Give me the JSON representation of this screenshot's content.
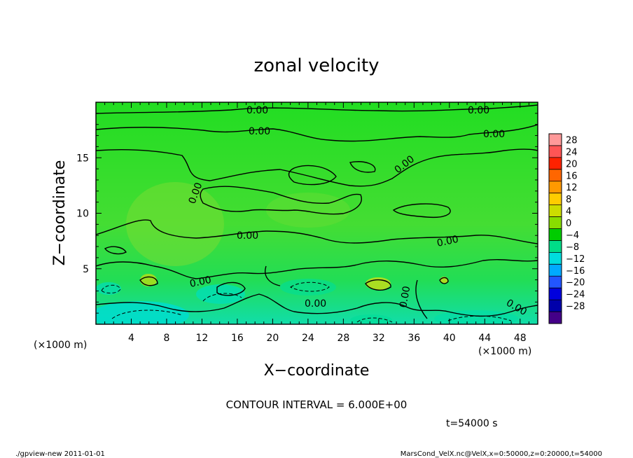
{
  "chart_data": {
    "type": "heatmap",
    "title": "zonal velocity",
    "xlabel": "X−coordinate",
    "ylabel": "Z−coordinate",
    "x_unit_left": "(×1000 m)",
    "x_unit_right": "(×1000 m)",
    "xlim": [
      0,
      50
    ],
    "ylim": [
      0,
      20
    ],
    "x_ticks": [
      4,
      8,
      12,
      16,
      20,
      24,
      28,
      32,
      36,
      40,
      44,
      48
    ],
    "y_ticks": [
      5,
      10,
      15
    ],
    "colorbar": {
      "labels": [
        "28",
        "24",
        "20",
        "16",
        "12",
        "8",
        "4",
        "0",
        "−4",
        "−8",
        "−12",
        "−16",
        "−20",
        "−24",
        "−28"
      ],
      "colors": [
        "#ff9999",
        "#ff5555",
        "#ff2200",
        "#ff6600",
        "#ff9900",
        "#ffcc00",
        "#ccdd00",
        "#88dd00",
        "#00cc00",
        "#00dd88",
        "#00dddd",
        "#00aaff",
        "#2255ff",
        "#0000dd",
        "#0000aa",
        "#440088"
      ]
    },
    "contour_labels": [
      "0.00",
      "0.00",
      "0.00",
      "0.00",
      "0.00",
      "0.00",
      "0.00",
      "0.00",
      "0.00",
      "0.00",
      "0.00",
      "0.00"
    ],
    "contour_interval_text": "CONTOUR INTERVAL = 6.000E+00",
    "time_text": "t=54000 s"
  },
  "footer": {
    "left": "./gpview-new  2011-01-01",
    "right": "MarsCond_VelX.nc@VelX,x=0:50000,z=0:20000,t=54000"
  }
}
